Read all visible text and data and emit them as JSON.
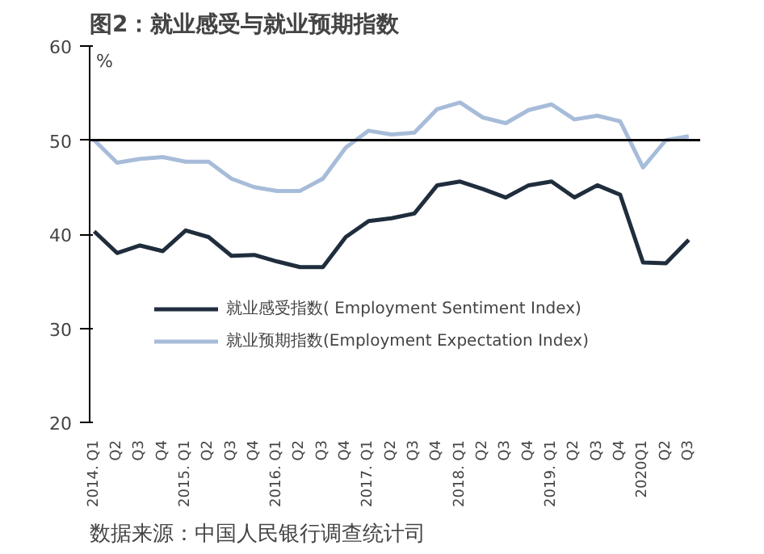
{
  "chart_data": {
    "type": "line",
    "title": "图2：就业感受与就业预期指数",
    "ylabel": "%",
    "categories": [
      "2014. Q1",
      "Q2",
      "Q3",
      "Q4",
      "2015. Q1",
      "Q2",
      "Q3",
      "Q4",
      "2016. Q1",
      "Q2",
      "Q3",
      "Q4",
      "2017. Q1",
      "Q2",
      "Q3",
      "Q4",
      "2018. Q1",
      "Q2",
      "Q3",
      "Q4",
      "2019. Q1",
      "Q2",
      "Q3",
      "Q4",
      "2020Q1",
      "Q2",
      "Q3"
    ],
    "series": [
      {
        "name": "就业感受指数( Employment Sentiment Index)",
        "color": "#1f2d3d",
        "values": [
          40.3,
          38.0,
          38.8,
          38.2,
          40.4,
          39.7,
          37.7,
          37.8,
          37.1,
          36.5,
          36.5,
          39.7,
          41.4,
          41.7,
          42.2,
          45.2,
          45.6,
          44.8,
          43.9,
          45.2,
          45.6,
          43.9,
          45.2,
          44.2,
          37.0,
          36.9,
          39.4
        ]
      },
      {
        "name": "就业预期指数(Employment Expectation Index)",
        "color": "#a7bcd9",
        "values": [
          50.0,
          47.6,
          48.0,
          48.2,
          47.7,
          47.7,
          45.9,
          45.0,
          44.6,
          44.6,
          45.9,
          49.2,
          51.0,
          50.6,
          50.8,
          53.3,
          54.0,
          52.4,
          51.8,
          53.2,
          53.8,
          52.2,
          52.6,
          52.0,
          47.1,
          50.0,
          50.4
        ]
      }
    ],
    "ylim": [
      20,
      60
    ],
    "yticks": [
      20,
      30,
      40,
      50,
      60
    ],
    "grid": false,
    "legend": "bottom left",
    "marker": "none",
    "line_style": "solid",
    "ref_lines": [
      {
        "axis": "y",
        "value": 50
      }
    ],
    "annotations": [
      "数据来源：中国人民银行调查统计司"
    ]
  }
}
